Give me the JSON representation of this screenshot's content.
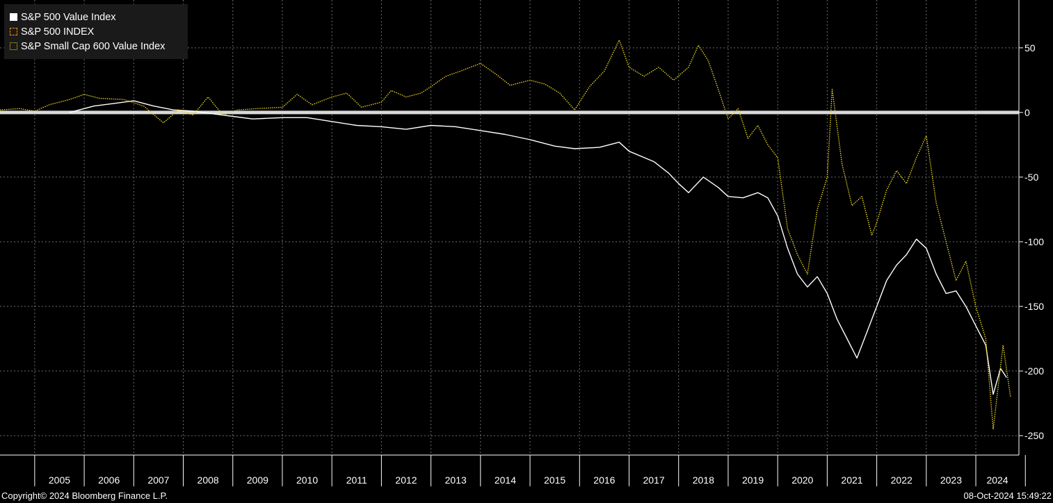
{
  "colors": {
    "background": "#000000",
    "grid": "#6e6e6e",
    "zero_line": "#d8d8d8",
    "series_value": "#ffffff",
    "series_index": "#ff8c00",
    "series_small_cap": "#e6d21e",
    "legend_bg": "#1a1a1a"
  },
  "chart_data": {
    "type": "line",
    "title": "",
    "xlabel": "",
    "ylabel": "",
    "xlim": [
      2004.3,
      2024.87
    ],
    "ylim": [
      -265,
      87
    ],
    "x_tick_labels": [
      "2005",
      "2006",
      "2007",
      "2008",
      "2009",
      "2010",
      "2011",
      "2012",
      "2013",
      "2014",
      "2015",
      "2016",
      "2017",
      "2018",
      "2019",
      "2020",
      "2021",
      "2022",
      "2023",
      "2024"
    ],
    "y_ticks": [
      50,
      0,
      -50,
      -100,
      -150,
      -200,
      -250
    ],
    "y_tick_labels": [
      "50",
      "0",
      "-50",
      "-100",
      "-150",
      "-200",
      "-250"
    ],
    "legend_position": "top-left",
    "grid": true,
    "series": [
      {
        "name": "S&P 500 Value Index",
        "style": "solid",
        "points": [
          [
            2005.7,
            0
          ],
          [
            2006.2,
            5
          ],
          [
            2006.6,
            7
          ],
          [
            2007.0,
            9
          ],
          [
            2007.4,
            5
          ],
          [
            2007.8,
            2
          ],
          [
            2008.2,
            1
          ],
          [
            2008.6,
            -1
          ],
          [
            2009.0,
            -3
          ],
          [
            2009.4,
            -5
          ],
          [
            2010.0,
            -4
          ],
          [
            2010.5,
            -4
          ],
          [
            2011.0,
            -7
          ],
          [
            2011.5,
            -10
          ],
          [
            2012.0,
            -11
          ],
          [
            2012.5,
            -13
          ],
          [
            2013.0,
            -10
          ],
          [
            2013.5,
            -11
          ],
          [
            2014.0,
            -14
          ],
          [
            2014.5,
            -17
          ],
          [
            2015.0,
            -21
          ],
          [
            2015.5,
            -26
          ],
          [
            2015.9,
            -28
          ],
          [
            2016.4,
            -27
          ],
          [
            2016.8,
            -23
          ],
          [
            2017.0,
            -30
          ],
          [
            2017.5,
            -38
          ],
          [
            2017.8,
            -47
          ],
          [
            2018.0,
            -55
          ],
          [
            2018.2,
            -62
          ],
          [
            2018.5,
            -50
          ],
          [
            2018.8,
            -58
          ],
          [
            2019.0,
            -65
          ],
          [
            2019.3,
            -66
          ],
          [
            2019.6,
            -62
          ],
          [
            2019.8,
            -66
          ],
          [
            2020.0,
            -80
          ],
          [
            2020.2,
            -105
          ],
          [
            2020.4,
            -125
          ],
          [
            2020.6,
            -135
          ],
          [
            2020.8,
            -127
          ],
          [
            2021.0,
            -140
          ],
          [
            2021.2,
            -160
          ],
          [
            2021.4,
            -175
          ],
          [
            2021.6,
            -190
          ],
          [
            2021.8,
            -170
          ],
          [
            2022.0,
            -150
          ],
          [
            2022.2,
            -130
          ],
          [
            2022.4,
            -118
          ],
          [
            2022.6,
            -110
          ],
          [
            2022.8,
            -98
          ],
          [
            2023.0,
            -105
          ],
          [
            2023.2,
            -125
          ],
          [
            2023.4,
            -140
          ],
          [
            2023.6,
            -138
          ],
          [
            2023.8,
            -150
          ],
          [
            2024.0,
            -165
          ],
          [
            2024.2,
            -180
          ],
          [
            2024.35,
            -218
          ],
          [
            2024.5,
            -198
          ],
          [
            2024.62,
            -205
          ]
        ]
      },
      {
        "name": "S&P 500 INDEX",
        "style": "dashed",
        "points": []
      },
      {
        "name": "S&P Small Cap 600 Value Index",
        "style": "dotted",
        "points": [
          [
            2004.3,
            2
          ],
          [
            2004.7,
            3
          ],
          [
            2005.0,
            1
          ],
          [
            2005.3,
            6
          ],
          [
            2005.7,
            10
          ],
          [
            2006.0,
            14
          ],
          [
            2006.3,
            11
          ],
          [
            2006.8,
            10
          ],
          [
            2007.2,
            5
          ],
          [
            2007.6,
            -8
          ],
          [
            2007.9,
            2
          ],
          [
            2008.2,
            -2
          ],
          [
            2008.5,
            12
          ],
          [
            2008.8,
            -2
          ],
          [
            2009.1,
            2
          ],
          [
            2009.5,
            3
          ],
          [
            2010.0,
            4
          ],
          [
            2010.3,
            14
          ],
          [
            2010.6,
            6
          ],
          [
            2011.0,
            12
          ],
          [
            2011.3,
            15
          ],
          [
            2011.6,
            4
          ],
          [
            2012.0,
            8
          ],
          [
            2012.2,
            17
          ],
          [
            2012.5,
            12
          ],
          [
            2012.8,
            15
          ],
          [
            2013.0,
            20
          ],
          [
            2013.3,
            28
          ],
          [
            2013.6,
            32
          ],
          [
            2014.0,
            38
          ],
          [
            2014.3,
            30
          ],
          [
            2014.6,
            21
          ],
          [
            2015.0,
            25
          ],
          [
            2015.3,
            22
          ],
          [
            2015.6,
            15
          ],
          [
            2015.9,
            2
          ],
          [
            2016.2,
            20
          ],
          [
            2016.5,
            32
          ],
          [
            2016.8,
            56
          ],
          [
            2017.0,
            35
          ],
          [
            2017.3,
            28
          ],
          [
            2017.6,
            35
          ],
          [
            2017.9,
            25
          ],
          [
            2018.2,
            35
          ],
          [
            2018.4,
            52
          ],
          [
            2018.6,
            40
          ],
          [
            2018.8,
            18
          ],
          [
            2019.0,
            -5
          ],
          [
            2019.2,
            3
          ],
          [
            2019.4,
            -20
          ],
          [
            2019.6,
            -10
          ],
          [
            2019.8,
            -25
          ],
          [
            2020.0,
            -35
          ],
          [
            2020.2,
            -90
          ],
          [
            2020.4,
            -110
          ],
          [
            2020.6,
            -125
          ],
          [
            2020.8,
            -75
          ],
          [
            2021.0,
            -50
          ],
          [
            2021.1,
            18
          ],
          [
            2021.3,
            -40
          ],
          [
            2021.5,
            -72
          ],
          [
            2021.7,
            -65
          ],
          [
            2021.9,
            -95
          ],
          [
            2022.0,
            -85
          ],
          [
            2022.2,
            -60
          ],
          [
            2022.4,
            -45
          ],
          [
            2022.6,
            -55
          ],
          [
            2022.8,
            -35
          ],
          [
            2023.0,
            -18
          ],
          [
            2023.2,
            -70
          ],
          [
            2023.4,
            -100
          ],
          [
            2023.6,
            -130
          ],
          [
            2023.8,
            -115
          ],
          [
            2024.0,
            -150
          ],
          [
            2024.2,
            -175
          ],
          [
            2024.35,
            -245
          ],
          [
            2024.55,
            -180
          ],
          [
            2024.7,
            -220
          ]
        ]
      }
    ]
  },
  "footer": {
    "copyright": "Copyright© 2024 Bloomberg Finance L.P.",
    "timestamp": "08-Oct-2024 15:49:22"
  }
}
